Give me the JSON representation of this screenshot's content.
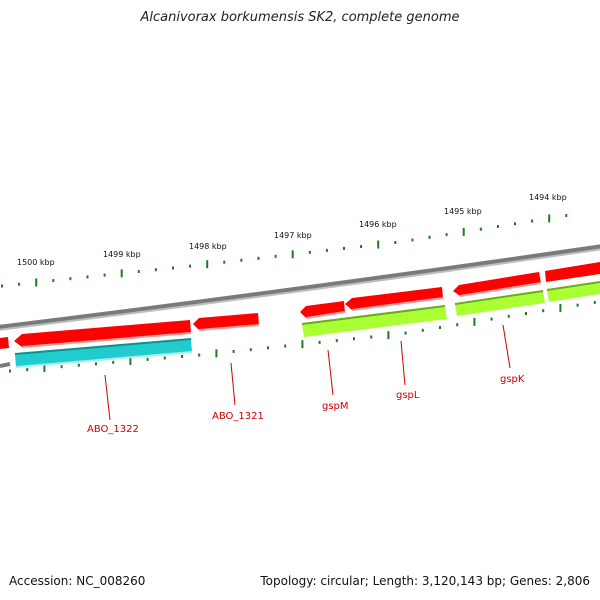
{
  "title": "Alcanivorax borkumensis SK2, complete genome",
  "footer": {
    "accession": "Accession: NC_008260",
    "summary": "Topology: circular; Length: 3,120,143 bp; Genes: 2,806"
  },
  "colors": {
    "backbone": "#808080",
    "forward_gene": "#ff0000",
    "reverse_gene_cyan": "#22cccc",
    "reverse_gene_lime": "#aaff33",
    "tick": "#1e7a1e",
    "label": "#cc0000"
  },
  "kbp_labels": [
    {
      "text": "1500 kbp"
    },
    {
      "text": "1499 kbp"
    },
    {
      "text": "1498 kbp"
    },
    {
      "text": "1497 kbp"
    },
    {
      "text": "1496 kbp"
    },
    {
      "text": "1495 kbp"
    },
    {
      "text": "1494 kbp"
    }
  ],
  "gene_labels": [
    {
      "text": "ABO_1322"
    },
    {
      "text": "ABO_1321"
    },
    {
      "text": "gspM"
    },
    {
      "text": "gspL"
    },
    {
      "text": "gspK"
    }
  ]
}
